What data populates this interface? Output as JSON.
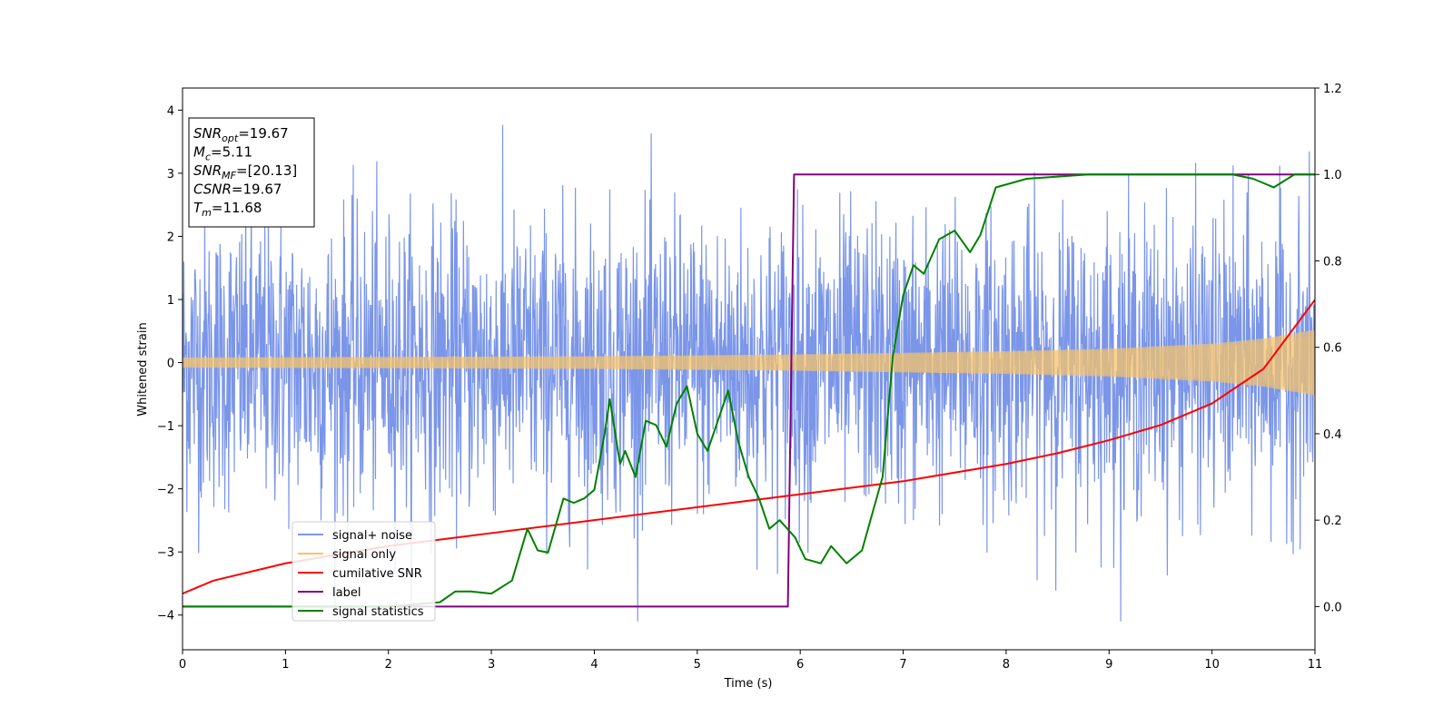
{
  "chart_data": {
    "type": "line",
    "xlabel": "Time (s)",
    "ylabel": "Whitened strain",
    "xlim": [
      0,
      11
    ],
    "ylim": [
      -4.55,
      4.35
    ],
    "y2lim": [
      -0.1,
      1.2
    ],
    "xticks": [
      "0",
      "1",
      "2",
      "3",
      "4",
      "5",
      "6",
      "7",
      "8",
      "9",
      "10",
      "11"
    ],
    "yticks": [
      "4",
      "3",
      "2",
      "1",
      "0",
      "−1",
      "−2",
      "−3",
      "−4"
    ],
    "y2ticks": [
      "0.0",
      "0.2",
      "0.4",
      "0.6",
      "0.8",
      "1.0",
      "1.2"
    ],
    "grid": false,
    "legend_position": "lower-left",
    "stats_box": [
      {
        "sym": "SNR",
        "sub": "opt",
        "val": "=19.67"
      },
      {
        "sym": "M",
        "sub": "c",
        "val": "=5.11"
      },
      {
        "sym": "SNR",
        "sub": "MF",
        "val": "=[20.13]"
      },
      {
        "sym": "CSNR",
        "sub": "",
        "val": "=19.67"
      },
      {
        "sym": "T",
        "sub": "m",
        "val": "=11.68"
      }
    ],
    "series": [
      {
        "name": "signal+ noise",
        "axis": "left",
        "color": "#7b96e8",
        "description_values": {
          "approx_amplitude": 1.5,
          "peak_max": 3.95,
          "peak_min": -4.1
        }
      },
      {
        "name": "signal only",
        "axis": "left",
        "color": "#f5c36b",
        "envelope": {
          "x": [
            0,
            2,
            4,
            6,
            8,
            9,
            10,
            10.5,
            11
          ],
          "amp": [
            0.08,
            0.09,
            0.1,
            0.13,
            0.18,
            0.22,
            0.3,
            0.38,
            0.52
          ]
        }
      },
      {
        "name": "cumilative SNR",
        "axis": "right",
        "color": "#ff0000",
        "x": [
          0,
          0.3,
          1,
          2,
          3,
          4,
          5,
          6,
          7,
          8,
          8.5,
          9,
          9.5,
          10,
          10.5,
          11
        ],
        "values": [
          0.03,
          0.06,
          0.1,
          0.14,
          0.17,
          0.2,
          0.23,
          0.26,
          0.29,
          0.33,
          0.355,
          0.385,
          0.42,
          0.47,
          0.55,
          0.71
        ]
      },
      {
        "name": "label",
        "axis": "right",
        "color": "#800080",
        "x": [
          0,
          5.88,
          5.94,
          11
        ],
        "values": [
          0,
          0,
          1,
          1
        ]
      },
      {
        "name": "signal statistics",
        "axis": "right",
        "color": "#008000",
        "x": [
          0,
          1,
          2,
          2.5,
          2.65,
          2.8,
          3.0,
          3.2,
          3.35,
          3.45,
          3.55,
          3.7,
          3.8,
          3.9,
          4.0,
          4.1,
          4.15,
          4.25,
          4.3,
          4.4,
          4.5,
          4.6,
          4.7,
          4.8,
          4.9,
          5.0,
          5.1,
          5.2,
          5.3,
          5.4,
          5.5,
          5.6,
          5.7,
          5.8,
          5.95,
          6.05,
          6.2,
          6.3,
          6.45,
          6.6,
          6.8,
          6.9,
          7.0,
          7.1,
          7.2,
          7.35,
          7.5,
          7.65,
          7.75,
          7.9,
          8.2,
          8.8,
          9.5,
          10.2,
          10.4,
          10.6,
          10.8,
          11.0
        ],
        "values": [
          0.0,
          0.0,
          0.0,
          0.01,
          0.035,
          0.035,
          0.03,
          0.06,
          0.18,
          0.13,
          0.125,
          0.25,
          0.24,
          0.25,
          0.27,
          0.4,
          0.48,
          0.33,
          0.36,
          0.3,
          0.43,
          0.42,
          0.37,
          0.47,
          0.51,
          0.4,
          0.36,
          0.43,
          0.5,
          0.38,
          0.3,
          0.25,
          0.18,
          0.2,
          0.16,
          0.11,
          0.1,
          0.14,
          0.1,
          0.13,
          0.3,
          0.58,
          0.72,
          0.79,
          0.77,
          0.85,
          0.87,
          0.82,
          0.86,
          0.97,
          0.99,
          1.0,
          1.0,
          1.0,
          0.99,
          0.97,
          1.0,
          1.0
        ]
      }
    ]
  }
}
